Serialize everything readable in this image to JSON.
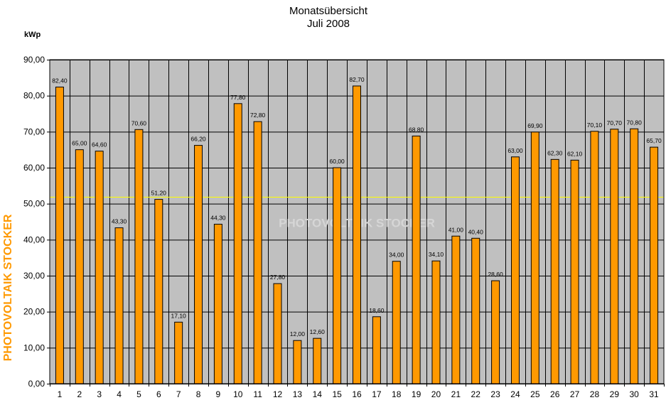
{
  "chart_data": {
    "type": "bar",
    "title": "Monatsübersicht",
    "subtitle": "Juli 2008",
    "ylabel": "kWp",
    "xlabel": "",
    "ylim": [
      0,
      90
    ],
    "ytick_step": 10,
    "y_tick_labels": [
      "0,00",
      "10,00",
      "20,00",
      "30,00",
      "40,00",
      "50,00",
      "60,00",
      "70,00",
      "80,00",
      "90,00"
    ],
    "categories": [
      "1",
      "2",
      "3",
      "4",
      "5",
      "6",
      "7",
      "8",
      "9",
      "10",
      "11",
      "12",
      "13",
      "14",
      "15",
      "16",
      "17",
      "18",
      "19",
      "20",
      "21",
      "22",
      "23",
      "24",
      "25",
      "26",
      "27",
      "28",
      "29",
      "30",
      "31"
    ],
    "values": [
      82.4,
      65.0,
      64.6,
      43.3,
      70.6,
      51.2,
      17.1,
      66.2,
      44.3,
      77.8,
      72.8,
      27.8,
      12.0,
      12.6,
      60.0,
      82.7,
      18.6,
      34.0,
      68.8,
      34.1,
      41.0,
      40.4,
      28.6,
      63.0,
      69.9,
      62.3,
      62.1,
      70.1,
      70.7,
      70.8,
      65.7
    ],
    "data_labels": [
      "82,40",
      "65,00",
      "64,60",
      "43,30",
      "70,60",
      "51,20",
      "17,10",
      "66,20",
      "44,30",
      "77,80",
      "72,80",
      "27,80",
      "12,00",
      "12,60",
      "60,00",
      "82,70",
      "18,60",
      "34,00",
      "68,80",
      "34,10",
      "41,00",
      "40,40",
      "28,60",
      "63,00",
      "69,90",
      "62,30",
      "62,10",
      "70,10",
      "70,70",
      "70,80",
      "65,70"
    ],
    "reference_line": 51.8,
    "grid": true,
    "legend": "none",
    "colors": {
      "bar": "#ff9900",
      "bar_stroke": "#000000",
      "plot_bg": "#c0c0c0",
      "grid": "#000000",
      "reference_line": "#ffff00",
      "side_text": "#ff9900",
      "watermark": "#d6d6d6"
    }
  },
  "side_label": "PHOTOVOLTAIK STOCKER",
  "watermark": "PHOTOVOLTAIK STOCKER"
}
